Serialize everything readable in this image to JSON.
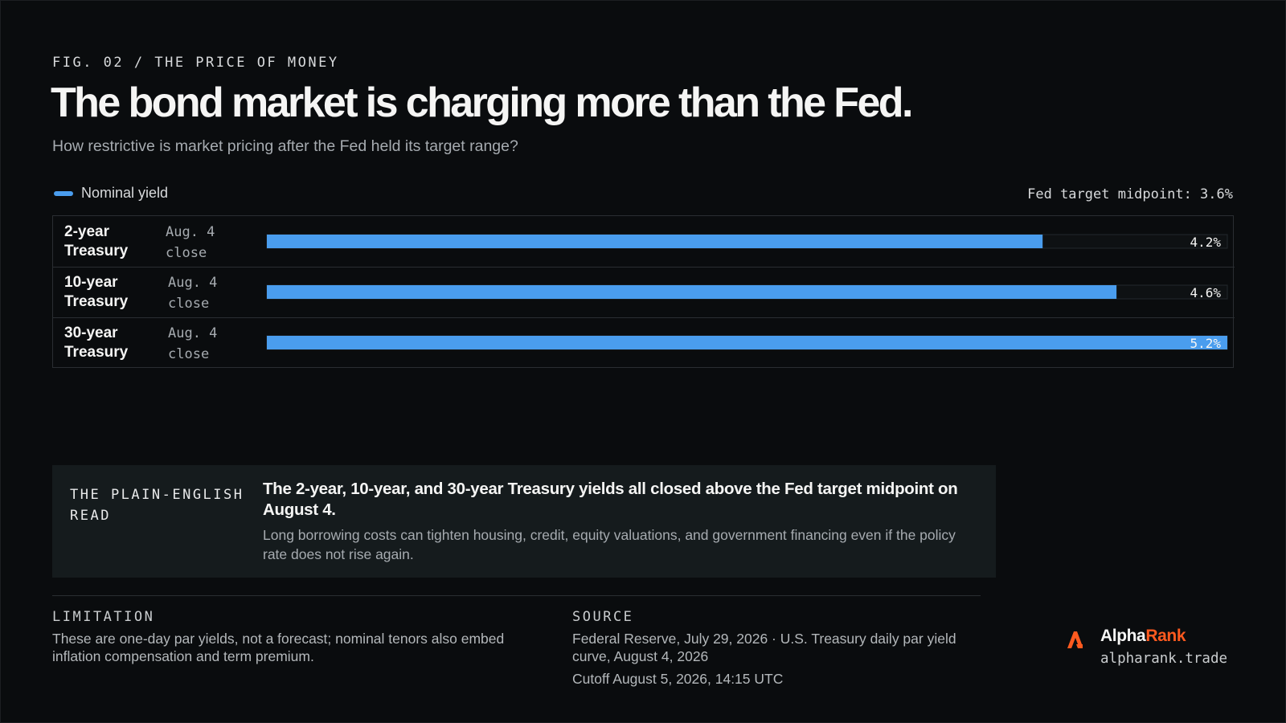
{
  "header": {
    "eyebrow": "FIG. 02 / THE PRICE OF MONEY",
    "title": "The bond market is charging more than the Fed.",
    "subtitle": "How restrictive is market pricing after the Fed held its target range?"
  },
  "legend": {
    "label": "Nominal yield",
    "fed_note": "Fed target midpoint: 3.6%"
  },
  "colors": {
    "bar": "#4a9dee",
    "track": "#0e1113",
    "brand_accent": "#ff5a1f"
  },
  "chart_data": {
    "type": "bar",
    "orientation": "horizontal",
    "categories": [
      "2-year Treasury",
      "10-year Treasury",
      "30-year Treasury"
    ],
    "rows": [
      {
        "name_line1": "2-year",
        "name_line2": "Treasury",
        "date_line1": "Aug. 4",
        "date_line2": "close",
        "value": 4.2,
        "value_label": "4.2%"
      },
      {
        "name_line1": "10-year",
        "name_line2": "Treasury",
        "date_line1": "Aug. 4",
        "date_line2": "close",
        "value": 4.6,
        "value_label": "4.6%"
      },
      {
        "name_line1": "30-year",
        "name_line2": "Treasury",
        "date_line1": "Aug. 4",
        "date_line2": "close",
        "value": 5.2,
        "value_label": "5.2%"
      }
    ],
    "series": [
      {
        "name": "Nominal yield",
        "values": [
          4.2,
          4.6,
          5.2
        ]
      }
    ],
    "reference": {
      "label": "Fed target midpoint",
      "value": 3.6
    },
    "xlim": [
      0,
      5.2
    ],
    "grid": false,
    "legend_position": "top-left"
  },
  "read": {
    "label": "THE PLAIN-ENGLISH READ",
    "headline": "The 2-year, 10-year, and 30-year Treasury yields all closed above the Fed target midpoint on August 4.",
    "body": "Long borrowing costs can tighten housing, credit, equity valuations, and government financing even if the policy rate does not rise again."
  },
  "footer": {
    "limitation_label": "LIMITATION",
    "limitation_text": "These are one-day par yields, not a forecast; nominal tenors also embed inflation compensation and term premium.",
    "source_label": "SOURCE",
    "source_text": "Federal Reserve, July 29, 2026 · U.S. Treasury daily par yield curve, August 4, 2026",
    "cutoff_text": "Cutoff August 5, 2026, 14:15 UTC"
  },
  "brand": {
    "icon": "alpharank-logo-icon",
    "name_part1": "Alpha",
    "name_part2": "Rank",
    "url": "alpharank.trade"
  }
}
